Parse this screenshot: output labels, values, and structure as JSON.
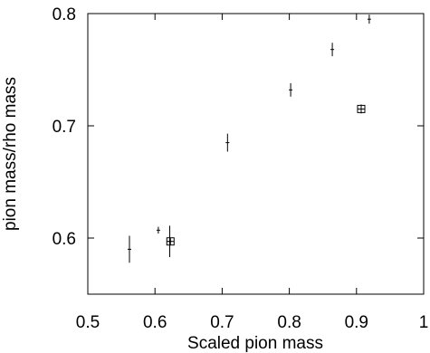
{
  "chart_data": {
    "type": "scatter",
    "title": "",
    "xlabel": "Scaled pion mass",
    "ylabel": "pion mass/rho mass",
    "xlim": [
      0.5,
      1.0
    ],
    "ylim": [
      0.55,
      0.8
    ],
    "x_ticks": [
      0.5,
      0.6,
      0.7,
      0.8,
      0.9,
      1.0
    ],
    "x_tick_labels": [
      "0.5",
      "0.6",
      "0.7",
      "0.8",
      "0.9",
      "1"
    ],
    "y_ticks": [
      0.6,
      0.7,
      0.8
    ],
    "y_tick_labels": [
      "0.6",
      "0.7",
      "0.8"
    ],
    "grid": false,
    "series": [
      {
        "marker": "plus",
        "points": [
          {
            "x": 0.562,
            "y": 0.59,
            "yerr": 0.012
          },
          {
            "x": 0.605,
            "y": 0.607,
            "yerr": 0.003
          },
          {
            "x": 0.622,
            "y": 0.597,
            "yerr": 0.014
          },
          {
            "x": 0.708,
            "y": 0.685,
            "yerr": 0.008
          },
          {
            "x": 0.802,
            "y": 0.732,
            "yerr": 0.006
          },
          {
            "x": 0.864,
            "y": 0.768,
            "yerr": 0.006
          },
          {
            "x": 0.919,
            "y": 0.795,
            "yerr": 0.004
          }
        ]
      },
      {
        "marker": "square",
        "points": [
          {
            "x": 0.623,
            "y": 0.597,
            "yerr": 0.003
          },
          {
            "x": 0.907,
            "y": 0.715,
            "yerr": 0.004
          }
        ]
      }
    ]
  }
}
